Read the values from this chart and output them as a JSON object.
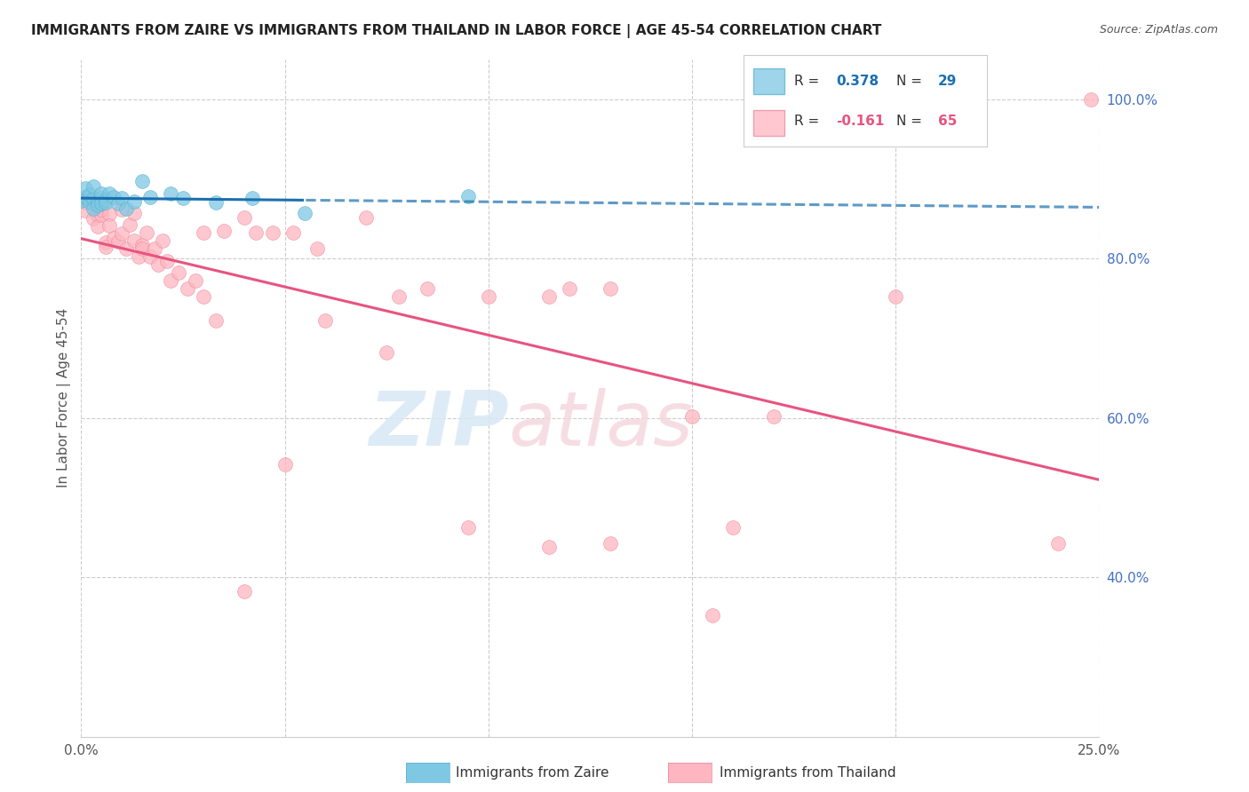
{
  "title": "IMMIGRANTS FROM ZAIRE VS IMMIGRANTS FROM THAILAND IN LABOR FORCE | AGE 45-54 CORRELATION CHART",
  "source": "Source: ZipAtlas.com",
  "ylabel": "In Labor Force | Age 45-54",
  "x_min": 0.0,
  "x_max": 0.25,
  "y_min": 0.2,
  "y_max": 1.05,
  "x_tick_positions": [
    0.0,
    0.05,
    0.1,
    0.15,
    0.2,
    0.25
  ],
  "x_tick_labels": [
    "0.0%",
    "",
    "",
    "",
    "",
    "25.0%"
  ],
  "y_ticks": [
    0.4,
    0.6,
    0.8,
    1.0
  ],
  "y_tick_labels": [
    "40.0%",
    "60.0%",
    "80.0%",
    "100.0%"
  ],
  "zaire_color": "#7ec8e3",
  "thailand_color": "#ffb6c1",
  "zaire_line_color": "#1a6faf",
  "thailand_line_color": "#e75480",
  "zaire_edge_color": "#5ab0d0",
  "thailand_edge_color": "#e8899a",
  "background_color": "#ffffff",
  "grid_color": "#cccccc",
  "watermark_color": "#d8e8f5",
  "watermark_pink": "#f5d8e0",
  "zaire_scatter_x": [
    0.0,
    0.001,
    0.001,
    0.002,
    0.002,
    0.003,
    0.003,
    0.003,
    0.004,
    0.004,
    0.005,
    0.005,
    0.005,
    0.006,
    0.006,
    0.007,
    0.008,
    0.009,
    0.01,
    0.011,
    0.013,
    0.015,
    0.017,
    0.022,
    0.025,
    0.033,
    0.042,
    0.055,
    0.095
  ],
  "zaire_scatter_y": [
    0.873,
    0.877,
    0.888,
    0.87,
    0.881,
    0.875,
    0.863,
    0.89,
    0.872,
    0.867,
    0.876,
    0.869,
    0.882,
    0.874,
    0.871,
    0.882,
    0.877,
    0.869,
    0.876,
    0.863,
    0.872,
    0.897,
    0.877,
    0.882,
    0.876,
    0.871,
    0.876,
    0.857,
    0.878
  ],
  "thailand_scatter_x": [
    0.0,
    0.001,
    0.001,
    0.002,
    0.003,
    0.004,
    0.004,
    0.005,
    0.005,
    0.005,
    0.006,
    0.006,
    0.007,
    0.007,
    0.008,
    0.009,
    0.01,
    0.01,
    0.011,
    0.012,
    0.013,
    0.013,
    0.014,
    0.015,
    0.015,
    0.016,
    0.017,
    0.018,
    0.019,
    0.02,
    0.021,
    0.022,
    0.024,
    0.026,
    0.028,
    0.03,
    0.03,
    0.033,
    0.035,
    0.04,
    0.043,
    0.047,
    0.052,
    0.058,
    0.07,
    0.078,
    0.085,
    0.1,
    0.115,
    0.12,
    0.13,
    0.15,
    0.17,
    0.2,
    0.115,
    0.155,
    0.248,
    0.06,
    0.075,
    0.095,
    0.04,
    0.05,
    0.13,
    0.16,
    0.24
  ],
  "thailand_scatter_y": [
    0.875,
    0.87,
    0.86,
    0.875,
    0.85,
    0.855,
    0.84,
    0.871,
    0.855,
    0.862,
    0.82,
    0.815,
    0.856,
    0.841,
    0.826,
    0.821,
    0.862,
    0.831,
    0.812,
    0.843,
    0.857,
    0.822,
    0.802,
    0.817,
    0.812,
    0.832,
    0.802,
    0.812,
    0.792,
    0.822,
    0.797,
    0.772,
    0.782,
    0.762,
    0.772,
    0.833,
    0.752,
    0.722,
    0.835,
    0.852,
    0.832,
    0.832,
    0.832,
    0.812,
    0.852,
    0.752,
    0.762,
    0.752,
    0.752,
    0.762,
    0.762,
    0.602,
    0.602,
    0.752,
    0.438,
    0.352,
    1.0,
    0.722,
    0.682,
    0.462,
    0.382,
    0.542,
    0.442,
    0.462,
    0.442
  ]
}
